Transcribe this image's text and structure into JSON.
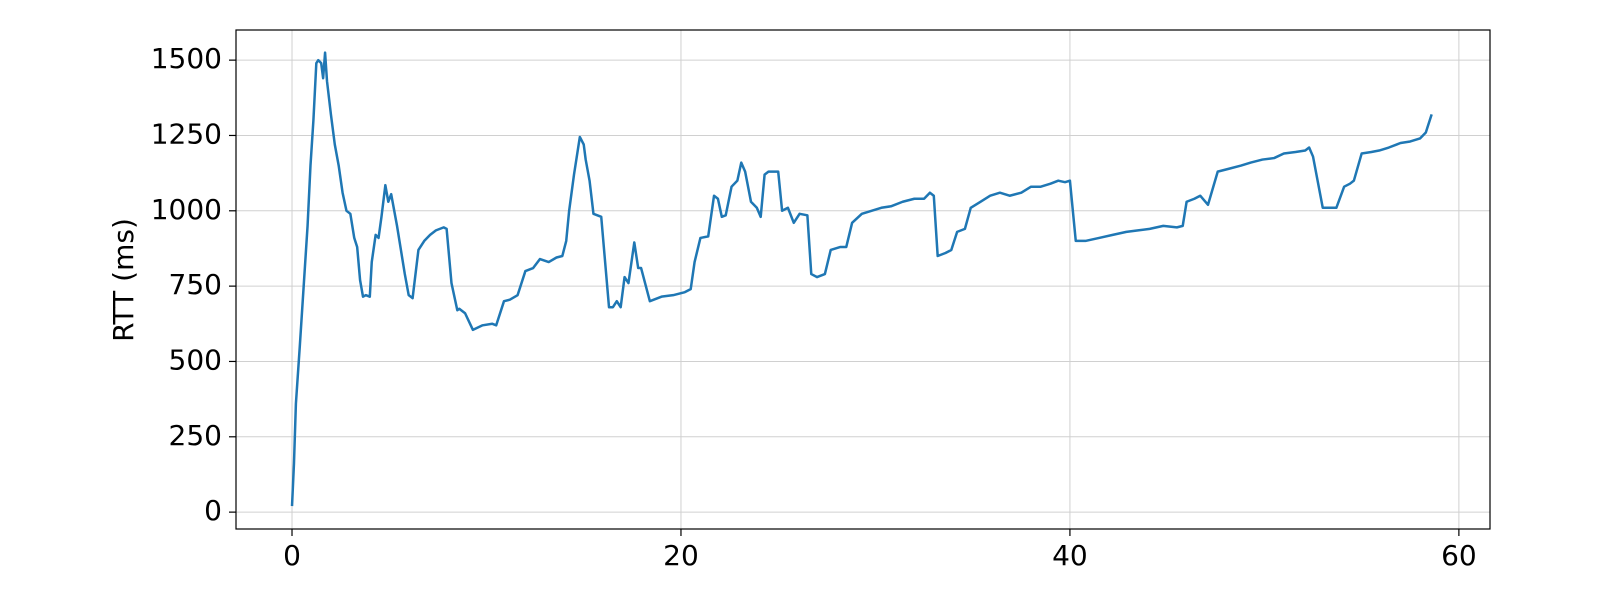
{
  "chart_data": {
    "type": "line",
    "y_label": "RTT (ms)",
    "x": [
      0,
      0.1,
      0.2,
      0.4,
      0.6,
      0.8,
      0.95,
      1.1,
      1.25,
      1.35,
      1.5,
      1.6,
      1.7,
      1.8,
      2.0,
      2.2,
      2.4,
      2.6,
      2.8,
      3.0,
      3.2,
      3.35,
      3.5,
      3.65,
      3.8,
      4.0,
      4.1,
      4.3,
      4.45,
      4.6,
      4.8,
      4.95,
      5.1,
      5.4,
      5.6,
      5.8,
      6.0,
      6.2,
      6.5,
      6.8,
      7.1,
      7.4,
      7.6,
      7.8,
      7.95,
      8.2,
      8.5,
      8.6,
      8.9,
      9.3,
      9.8,
      10.3,
      10.5,
      10.9,
      11.2,
      11.6,
      12.0,
      12.4,
      12.75,
      13.2,
      13.6,
      13.9,
      14.1,
      14.25,
      14.5,
      14.8,
      15.0,
      15.1,
      15.3,
      15.5,
      15.9,
      16.3,
      16.5,
      16.7,
      16.9,
      17.1,
      17.3,
      17.6,
      17.8,
      17.95,
      18.4,
      19.0,
      19.6,
      20.2,
      20.5,
      20.7,
      21.0,
      21.4,
      21.7,
      21.9,
      22.1,
      22.3,
      22.6,
      22.9,
      23.1,
      23.3,
      23.6,
      23.9,
      24.1,
      24.3,
      24.5,
      25.0,
      25.2,
      25.5,
      25.8,
      26.1,
      26.5,
      26.7,
      27.0,
      27.4,
      27.7,
      28.2,
      28.5,
      28.8,
      29.3,
      29.8,
      30.3,
      30.8,
      31.4,
      32.0,
      32.5,
      32.8,
      33.0,
      33.2,
      33.6,
      33.9,
      34.2,
      34.6,
      34.9,
      35.4,
      35.9,
      36.4,
      36.9,
      37.5,
      38.0,
      38.5,
      39.0,
      39.4,
      39.75,
      40.0,
      40.3,
      40.8,
      41.5,
      42.2,
      42.9,
      43.5,
      44.1,
      44.8,
      45.5,
      45.8,
      46.0,
      46.4,
      46.7,
      47.1,
      47.6,
      48.2,
      48.8,
      49.3,
      49.9,
      50.5,
      51.0,
      51.6,
      52.1,
      52.3,
      52.5,
      53.0,
      53.4,
      53.7,
      54.1,
      54.4,
      54.6,
      55.0,
      55.5,
      55.9,
      56.4,
      57.0,
      57.5,
      58.0,
      58.3,
      58.6
    ],
    "series": [
      {
        "name": "RTT",
        "color": "#1f77b4",
        "values": [
          20,
          160,
          360,
          550,
          750,
          950,
          1150,
          1300,
          1490,
          1500,
          1490,
          1440,
          1525,
          1430,
          1320,
          1220,
          1150,
          1060,
          1000,
          990,
          910,
          880,
          770,
          715,
          720,
          715,
          830,
          920,
          910,
          980,
          1085,
          1030,
          1055,
          950,
          870,
          790,
          720,
          710,
          870,
          900,
          920,
          935,
          940,
          945,
          940,
          760,
          670,
          675,
          660,
          605,
          620,
          625,
          620,
          700,
          705,
          720,
          800,
          810,
          840,
          830,
          845,
          850,
          900,
          1000,
          1120,
          1245,
          1220,
          1170,
          1100,
          990,
          980,
          680,
          680,
          700,
          680,
          780,
          760,
          895,
          810,
          810,
          700,
          715,
          720,
          730,
          740,
          830,
          910,
          915,
          1050,
          1040,
          980,
          985,
          1080,
          1100,
          1160,
          1130,
          1030,
          1010,
          980,
          1120,
          1130,
          1130,
          1000,
          1010,
          960,
          990,
          985,
          790,
          780,
          790,
          870,
          880,
          880,
          960,
          990,
          1000,
          1010,
          1015,
          1030,
          1040,
          1040,
          1060,
          1050,
          850,
          860,
          870,
          930,
          940,
          1010,
          1030,
          1050,
          1060,
          1050,
          1060,
          1080,
          1080,
          1090,
          1100,
          1095,
          1100,
          900,
          900,
          910,
          920,
          930,
          935,
          940,
          950,
          945,
          950,
          1030,
          1040,
          1050,
          1020,
          1130,
          1140,
          1150,
          1160,
          1170,
          1175,
          1190,
          1195,
          1200,
          1210,
          1180,
          1010,
          1010,
          1010,
          1080,
          1090,
          1100,
          1190,
          1195,
          1200,
          1210,
          1225,
          1230,
          1240,
          1260,
          1320
        ]
      }
    ],
    "xlim": [
      -2.88,
      61.6
    ],
    "ylim": [
      -56,
      1600
    ],
    "xticks": [
      0,
      20,
      40,
      60
    ],
    "yticks": [
      0,
      250,
      500,
      750,
      1000,
      1250,
      1500
    ],
    "grid": true
  }
}
